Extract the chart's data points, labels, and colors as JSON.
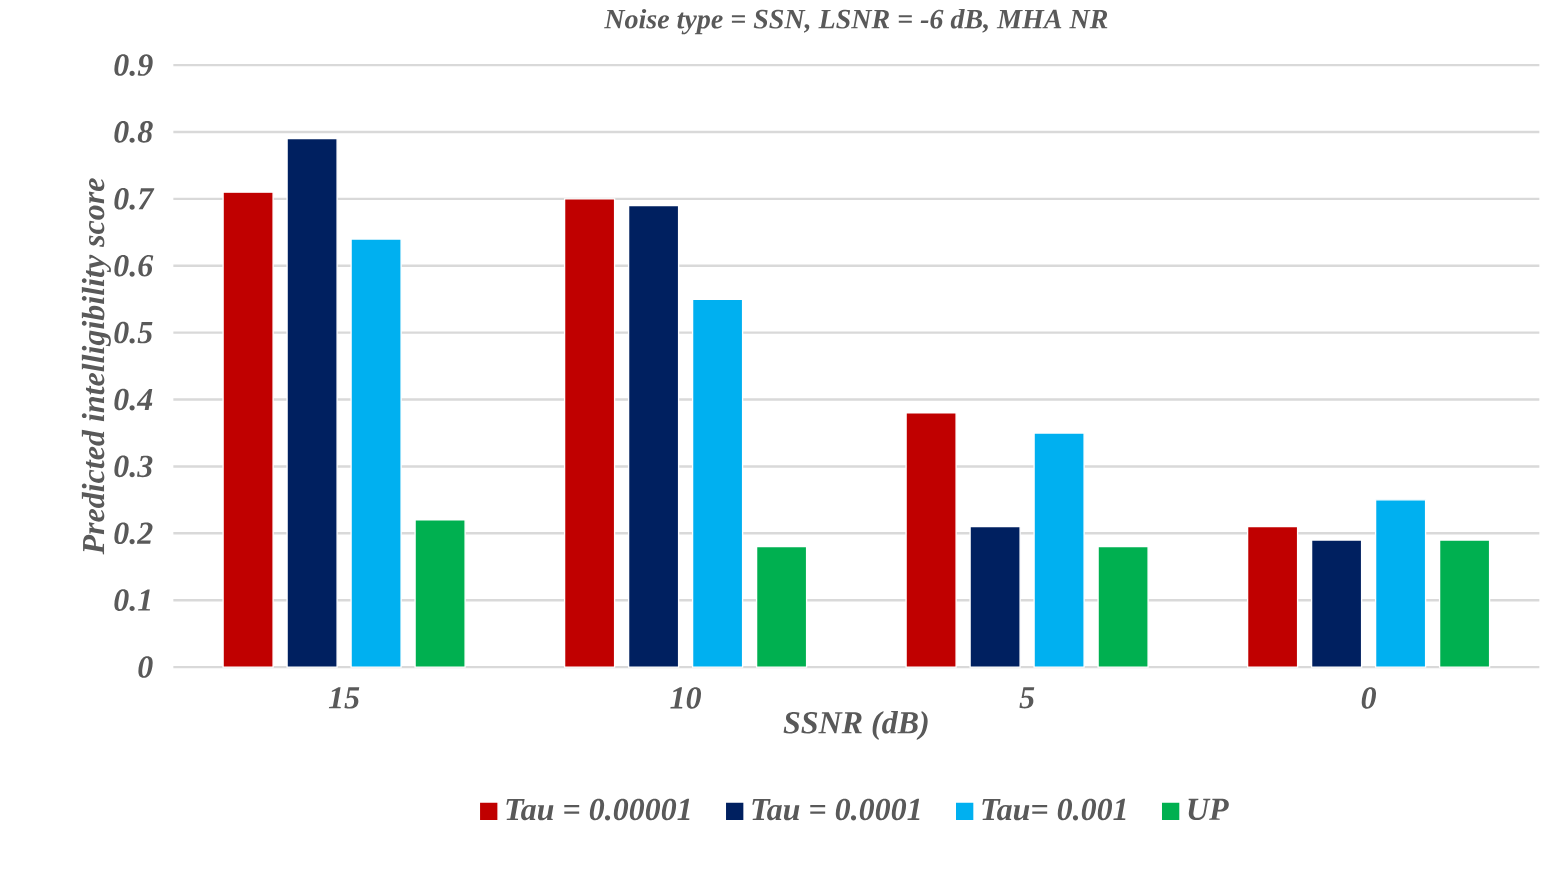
{
  "chart_data": {
    "type": "bar",
    "title": "Noise type = SSN, LSNR = -6 dB, MHA NR",
    "xlabel": "SSNR (dB)",
    "ylabel": "Predicted intelligibility score",
    "categories": [
      "15",
      "10",
      "5",
      "0"
    ],
    "series": [
      {
        "name": "Tau = 0.00001",
        "color": "#c00000",
        "values": [
          0.71,
          0.7,
          0.38,
          0.21
        ]
      },
      {
        "name": "Tau = 0.0001",
        "color": "#002060",
        "values": [
          0.79,
          0.69,
          0.21,
          0.19
        ]
      },
      {
        "name": "Tau= 0.001",
        "color": "#00b0f0",
        "values": [
          0.64,
          0.55,
          0.35,
          0.25
        ]
      },
      {
        "name": "UP",
        "color": "#00b050",
        "values": [
          0.22,
          0.18,
          0.18,
          0.19
        ]
      }
    ],
    "ylim": [
      0,
      0.9
    ],
    "yticks": [
      0,
      0.1,
      0.2,
      0.3,
      0.4,
      0.5,
      0.6,
      0.7,
      0.8,
      0.9
    ],
    "grid": "y",
    "legend": "bottom"
  }
}
